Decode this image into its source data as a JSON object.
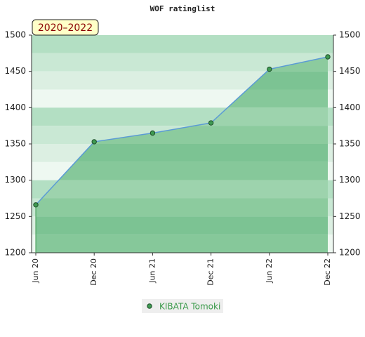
{
  "chart_data": {
    "type": "area",
    "title": "WOF ratinglist",
    "annotation": "2020–2022",
    "categories": [
      "Jun 20",
      "Dec 20",
      "Jun 21",
      "Dec 21",
      "Jun 22",
      "Dec 22"
    ],
    "series": [
      {
        "name": "KIBATA Tomoki",
        "color": "#5b9bd5",
        "marker_color": "#3f9a52",
        "values": [
          1266,
          1353,
          1365,
          1379,
          1453,
          1470
        ]
      }
    ],
    "ylim": [
      1200,
      1500
    ],
    "yticks": [
      1200,
      1250,
      1300,
      1350,
      1400,
      1450,
      1500
    ],
    "y2lim": [
      1200,
      1500
    ],
    "y2ticks": [
      1200,
      1250,
      1300,
      1350,
      1400,
      1450,
      1500
    ]
  }
}
